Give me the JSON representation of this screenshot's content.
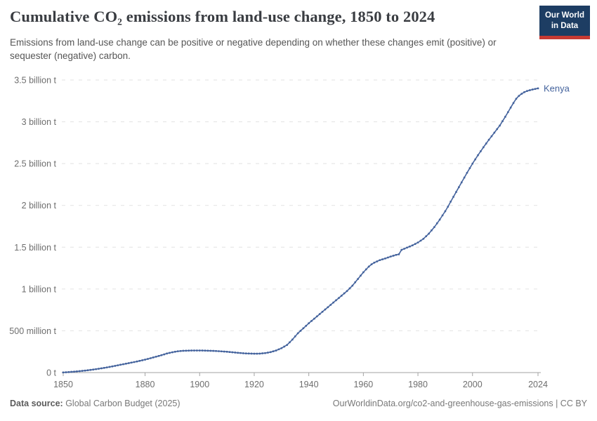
{
  "header": {
    "title": "Cumulative CO₂ emissions from land-use change, 1850 to 2024",
    "subtitle": "Emissions from land-use change can be positive or negative depending on whether these changes emit (positive) or sequester (negative) carbon.",
    "logo": {
      "line1": "Our World",
      "line2": "in Data",
      "bg_color": "#1d3d63",
      "accent_color": "#c73a33"
    }
  },
  "chart_data": {
    "type": "line",
    "title": "Cumulative CO₂ emissions from land-use change, 1850 to 2024",
    "values_unit": "million tonnes of CO₂",
    "xlim": [
      1850,
      2024
    ],
    "ylim": [
      0,
      3500
    ],
    "grid": "horizontal-dashed",
    "legend_position": "end-of-line-label",
    "x_ticks": [
      1850,
      1880,
      1900,
      1920,
      1940,
      1960,
      1980,
      2000,
      2024
    ],
    "y_ticks": [
      {
        "value": 0,
        "label": "0 t"
      },
      {
        "value": 500,
        "label": "500 million t"
      },
      {
        "value": 1000,
        "label": "1 billion t"
      },
      {
        "value": 1500,
        "label": "1.5 billion t"
      },
      {
        "value": 2000,
        "label": "2 billion t"
      },
      {
        "value": 2500,
        "label": "2.5 billion t"
      },
      {
        "value": 3000,
        "label": "3 billion t"
      },
      {
        "value": 3500,
        "label": "3.5 billion t"
      }
    ],
    "series": [
      {
        "name": "Kenya",
        "color": "#44639d",
        "points": [
          [
            1850,
            2
          ],
          [
            1852,
            6
          ],
          [
            1854,
            11
          ],
          [
            1856,
            17
          ],
          [
            1858,
            24
          ],
          [
            1860,
            32
          ],
          [
            1862,
            41
          ],
          [
            1864,
            51
          ],
          [
            1866,
            62
          ],
          [
            1868,
            74
          ],
          [
            1870,
            87
          ],
          [
            1872,
            100
          ],
          [
            1874,
            113
          ],
          [
            1876,
            126
          ],
          [
            1878,
            140
          ],
          [
            1880,
            155
          ],
          [
            1882,
            172
          ],
          [
            1884,
            190
          ],
          [
            1886,
            208
          ],
          [
            1888,
            228
          ],
          [
            1890,
            243
          ],
          [
            1892,
            255
          ],
          [
            1894,
            261
          ],
          [
            1896,
            263
          ],
          [
            1898,
            264
          ],
          [
            1900,
            264
          ],
          [
            1902,
            263
          ],
          [
            1904,
            261
          ],
          [
            1906,
            258
          ],
          [
            1908,
            254
          ],
          [
            1910,
            249
          ],
          [
            1912,
            243
          ],
          [
            1914,
            237
          ],
          [
            1916,
            231
          ],
          [
            1918,
            228
          ],
          [
            1920,
            226
          ],
          [
            1922,
            227
          ],
          [
            1924,
            233
          ],
          [
            1926,
            245
          ],
          [
            1928,
            264
          ],
          [
            1930,
            292
          ],
          [
            1932,
            330
          ],
          [
            1934,
            395
          ],
          [
            1936,
            470
          ],
          [
            1938,
            530
          ],
          [
            1940,
            590
          ],
          [
            1942,
            645
          ],
          [
            1944,
            700
          ],
          [
            1946,
            755
          ],
          [
            1948,
            810
          ],
          [
            1950,
            865
          ],
          [
            1952,
            920
          ],
          [
            1954,
            975
          ],
          [
            1956,
            1040
          ],
          [
            1958,
            1120
          ],
          [
            1960,
            1200
          ],
          [
            1962,
            1268
          ],
          [
            1963,
            1295
          ],
          [
            1964,
            1315
          ],
          [
            1966,
            1345
          ],
          [
            1968,
            1365
          ],
          [
            1970,
            1388
          ],
          [
            1972,
            1408
          ],
          [
            1973,
            1415
          ],
          [
            1974,
            1468
          ],
          [
            1976,
            1495
          ],
          [
            1978,
            1522
          ],
          [
            1980,
            1556
          ],
          [
            1982,
            1600
          ],
          [
            1984,
            1662
          ],
          [
            1986,
            1740
          ],
          [
            1988,
            1830
          ],
          [
            1990,
            1930
          ],
          [
            1991,
            1985
          ],
          [
            1992,
            2045
          ],
          [
            1994,
            2160
          ],
          [
            1996,
            2275
          ],
          [
            1998,
            2390
          ],
          [
            2000,
            2500
          ],
          [
            2002,
            2600
          ],
          [
            2004,
            2695
          ],
          [
            2006,
            2785
          ],
          [
            2008,
            2870
          ],
          [
            2010,
            2955
          ],
          [
            2012,
            3060
          ],
          [
            2014,
            3170
          ],
          [
            2015,
            3225
          ],
          [
            2016,
            3275
          ],
          [
            2017,
            3310
          ],
          [
            2018,
            3335
          ],
          [
            2019,
            3355
          ],
          [
            2020,
            3368
          ],
          [
            2021,
            3378
          ],
          [
            2022,
            3386
          ],
          [
            2023,
            3393
          ],
          [
            2024,
            3400
          ]
        ]
      }
    ]
  },
  "footer": {
    "source_label": "Data source:",
    "source_text": " Global Carbon Budget (2025)",
    "link_text": "OurWorldinData.org/co2-and-greenhouse-gas-emissions | CC BY"
  }
}
